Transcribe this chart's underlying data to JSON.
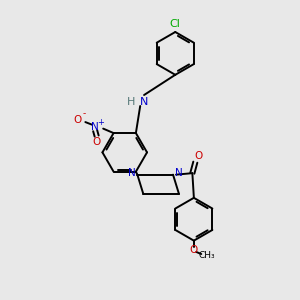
{
  "bg_color": "#e8e8e8",
  "bond_color": "#000000",
  "N_color": "#0000cc",
  "O_color": "#cc0000",
  "Cl_color": "#00aa00",
  "H_color": "#557777",
  "bond_width": 1.4,
  "figsize": [
    3.0,
    3.0
  ],
  "dpi": 100,
  "xlim": [
    0,
    10
  ],
  "ylim": [
    0,
    10
  ]
}
